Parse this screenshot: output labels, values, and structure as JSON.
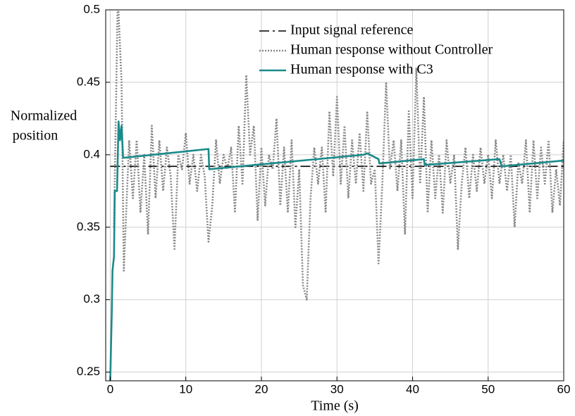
{
  "chart_data": {
    "type": "line",
    "x_label": "Time (s)",
    "y_label": [
      "Normalized",
      "position"
    ],
    "xlim": [
      -0.6,
      60
    ],
    "ylim": [
      0.244,
      0.5
    ],
    "xticks": [
      0,
      10,
      20,
      30,
      40,
      50,
      60
    ],
    "yticks": [
      0.25,
      0.3,
      0.35,
      0.4,
      0.45,
      0.5
    ],
    "grid": true,
    "legend": "upper right",
    "series": [
      {
        "name": "Input signal reference",
        "color": "#000000",
        "style": "dashdot",
        "x": [
          0,
          60
        ],
        "values": [
          0.392,
          0.392
        ]
      },
      {
        "name": "Human response without Controller",
        "color": "#888888",
        "style": "dotted",
        "x": [
          0.5,
          1,
          1.5,
          1.8,
          2.5,
          3,
          3.5,
          4,
          4.5,
          5,
          5.5,
          6,
          6.5,
          7,
          7.5,
          8,
          8.5,
          9,
          9.5,
          10,
          10.5,
          11,
          11.5,
          12,
          12.5,
          13,
          13.5,
          14,
          14.5,
          15,
          15.5,
          16,
          16.5,
          17,
          17.5,
          18,
          18.5,
          19,
          19.5,
          20,
          20.5,
          21,
          21.5,
          22,
          22.5,
          23,
          23.5,
          24,
          24.5,
          25,
          25.5,
          26,
          26.5,
          27,
          27.5,
          28,
          28.5,
          29,
          29.5,
          30,
          30.5,
          31,
          31.5,
          32,
          32.5,
          33,
          33.5,
          34,
          34.5,
          35,
          35.5,
          36,
          36.5,
          37,
          37.5,
          38,
          38.5,
          39,
          39.5,
          40,
          40.5,
          41,
          41.5,
          42,
          42.5,
          43,
          43.5,
          44,
          44.5,
          45,
          45.5,
          46,
          46.5,
          47,
          47.5,
          48,
          48.5,
          49,
          49.5,
          50,
          50.5,
          51,
          51.5,
          52,
          52.5,
          53,
          53.5,
          54,
          54.5,
          55,
          55.5,
          56,
          56.5,
          57,
          57.5,
          58,
          58.5,
          59,
          59.5,
          60
        ],
        "values": [
          0.35,
          0.51,
          0.45,
          0.32,
          0.41,
          0.37,
          0.41,
          0.36,
          0.4,
          0.345,
          0.42,
          0.37,
          0.41,
          0.375,
          0.405,
          0.385,
          0.335,
          0.4,
          0.39,
          0.415,
          0.38,
          0.4,
          0.375,
          0.4,
          0.385,
          0.34,
          0.365,
          0.41,
          0.38,
          0.4,
          0.39,
          0.405,
          0.36,
          0.42,
          0.38,
          0.455,
          0.4,
          0.42,
          0.355,
          0.405,
          0.365,
          0.4,
          0.39,
          0.425,
          0.365,
          0.405,
          0.36,
          0.41,
          0.35,
          0.39,
          0.31,
          0.3,
          0.37,
          0.405,
          0.38,
          0.405,
          0.36,
          0.43,
          0.385,
          0.44,
          0.38,
          0.42,
          0.37,
          0.41,
          0.38,
          0.415,
          0.375,
          0.43,
          0.38,
          0.39,
          0.325,
          0.38,
          0.45,
          0.39,
          0.41,
          0.375,
          0.41,
          0.345,
          0.43,
          0.37,
          0.46,
          0.38,
          0.44,
          0.36,
          0.41,
          0.37,
          0.4,
          0.36,
          0.41,
          0.38,
          0.4,
          0.335,
          0.38,
          0.405,
          0.37,
          0.4,
          0.375,
          0.405,
          0.38,
          0.4,
          0.37,
          0.41,
          0.38,
          0.4,
          0.375,
          0.4,
          0.35,
          0.395,
          0.38,
          0.41,
          0.36,
          0.41,
          0.37,
          0.405,
          0.38,
          0.41,
          0.36,
          0.39,
          0.365,
          0.41
        ]
      },
      {
        "name": "Human response with C3",
        "color": "#1a8a8a",
        "style": "solid",
        "x": [
          0,
          0.2,
          0.3,
          0.5,
          0.6,
          0.9,
          1.1,
          1.3,
          1.5,
          1.7,
          2,
          13,
          13.1,
          33.5,
          34,
          35.5,
          35.6,
          41.5,
          41.6,
          51.5,
          51.8,
          60
        ],
        "values": [
          0.244,
          0.29,
          0.32,
          0.33,
          0.375,
          0.375,
          0.423,
          0.41,
          0.42,
          0.398,
          0.398,
          0.404,
          0.39,
          0.4,
          0.401,
          0.397,
          0.394,
          0.397,
          0.393,
          0.397,
          0.392,
          0.396
        ]
      }
    ]
  }
}
